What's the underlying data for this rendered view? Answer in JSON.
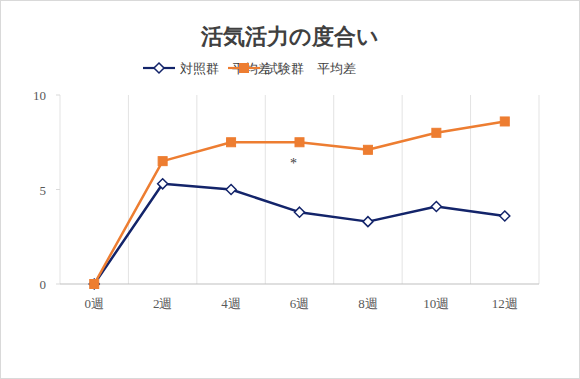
{
  "chart_data": {
    "type": "line",
    "title": "活気活力の度合い",
    "categories": [
      "0週",
      "2週",
      "4週",
      "6週",
      "8週",
      "10週",
      "12週"
    ],
    "series": [
      {
        "name": "対照群　平均差",
        "color": "#13246a",
        "marker": "diamond",
        "values": [
          0,
          5.3,
          5.0,
          3.8,
          3.3,
          4.1,
          3.6
        ]
      },
      {
        "name": "試験群　平均差",
        "color": "#ed7d31",
        "marker": "square",
        "values": [
          0,
          6.5,
          7.5,
          7.5,
          7.1,
          8.0,
          8.6
        ]
      }
    ],
    "annotations": [
      {
        "text": "*",
        "category": "6週"
      }
    ],
    "ylim": [
      0,
      10
    ],
    "yticks": [
      0,
      5,
      10
    ],
    "grid": true,
    "legend": "top"
  }
}
